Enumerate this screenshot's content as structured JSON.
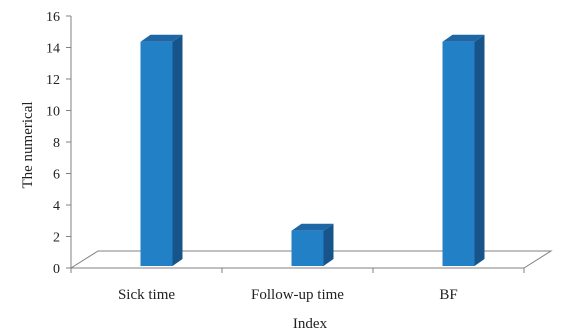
{
  "chart_data": {
    "type": "bar",
    "categories": [
      "Sick time",
      "Follow-up time",
      "BF"
    ],
    "values": [
      15,
      3,
      15
    ],
    "xlabel": "Index",
    "ylabel": "The numerical",
    "ylim": [
      0,
      16
    ],
    "yticks": [
      0,
      2,
      4,
      6,
      8,
      10,
      12,
      14,
      16
    ],
    "grid": false,
    "legend": "none",
    "style": "3d-column",
    "colors": {
      "bar_front": "#2280c6",
      "bar_side": "#17548a",
      "bar_top": "#1d67a6",
      "floor": "#ffffff",
      "axis": "#808080"
    }
  }
}
